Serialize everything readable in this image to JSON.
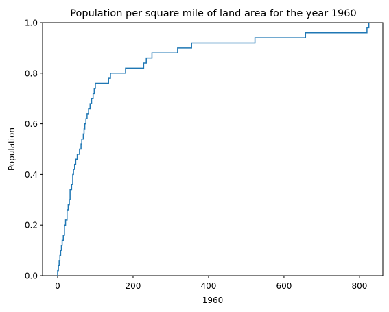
{
  "chart_data": {
    "type": "line",
    "subtype": "ecdf-step",
    "title": "Population per square mile of land area for the year 1960",
    "xlabel": "1960",
    "ylabel": "Population",
    "xlim": [
      -40,
      862
    ],
    "ylim": [
      0,
      1
    ],
    "xticks": [
      0,
      200,
      400,
      600,
      800
    ],
    "yticks": [
      0.0,
      0.2,
      0.4,
      0.6,
      0.8,
      1.0
    ],
    "ytick_labels": [
      "0.0",
      "0.2",
      "0.4",
      "0.6",
      "0.8",
      "1.0"
    ],
    "grid": false,
    "legend": "none",
    "series": [
      {
        "color": "#1f77b4",
        "x": [
          0,
          2,
          4,
          6,
          8,
          10,
          12,
          15,
          18,
          21,
          25,
          28,
          31,
          33,
          37,
          40,
          42,
          45,
          48,
          52,
          58,
          62,
          64,
          68,
          70,
          72,
          75,
          78,
          82,
          86,
          90,
          94,
          97,
          100,
          135,
          140,
          180,
          228,
          235,
          250,
          318,
          355,
          523,
          657,
          820,
          825
        ],
        "y": [
          0.02,
          0.04,
          0.06,
          0.08,
          0.1,
          0.12,
          0.14,
          0.16,
          0.2,
          0.22,
          0.26,
          0.28,
          0.3,
          0.34,
          0.36,
          0.4,
          0.42,
          0.44,
          0.46,
          0.48,
          0.5,
          0.52,
          0.54,
          0.56,
          0.58,
          0.6,
          0.62,
          0.64,
          0.66,
          0.68,
          0.7,
          0.72,
          0.74,
          0.76,
          0.78,
          0.8,
          0.82,
          0.84,
          0.86,
          0.88,
          0.9,
          0.92,
          0.94,
          0.96,
          0.98,
          1.0
        ]
      }
    ]
  }
}
